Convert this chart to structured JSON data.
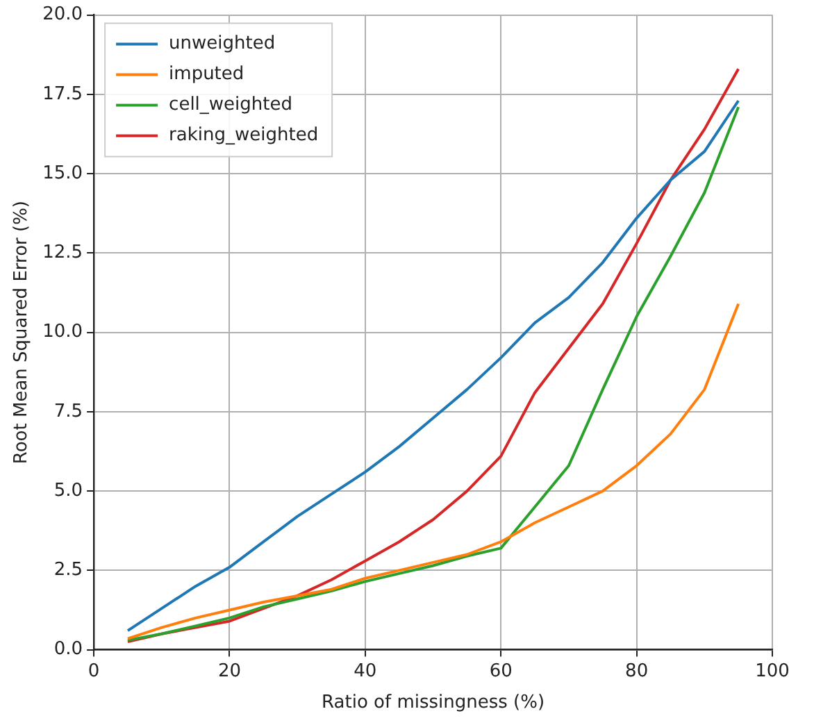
{
  "chart_data": {
    "type": "line",
    "xlabel": "Ratio of missingness (%)",
    "ylabel": "Root Mean Squared Error (%)",
    "x": [
      5,
      10,
      15,
      20,
      25,
      30,
      35,
      40,
      45,
      50,
      55,
      60,
      65,
      70,
      75,
      80,
      85,
      90,
      95
    ],
    "series": [
      {
        "name": "unweighted",
        "color": "#1f77b4",
        "values": [
          0.6,
          1.3,
          2.0,
          2.6,
          3.4,
          4.2,
          4.9,
          5.6,
          6.4,
          7.3,
          8.2,
          9.2,
          10.3,
          11.1,
          12.2,
          13.6,
          14.8,
          15.7,
          17.3
        ]
      },
      {
        "name": "imputed",
        "color": "#ff7f0e",
        "values": [
          0.35,
          0.7,
          1.0,
          1.25,
          1.5,
          1.7,
          1.9,
          2.25,
          2.5,
          2.75,
          3.0,
          3.4,
          4.0,
          4.5,
          5.0,
          5.8,
          6.8,
          8.2,
          10.9
        ]
      },
      {
        "name": "cell_weighted",
        "color": "#2ca02c",
        "values": [
          0.3,
          0.5,
          0.75,
          1.0,
          1.35,
          1.6,
          1.85,
          2.15,
          2.4,
          2.65,
          2.95,
          3.2,
          4.5,
          5.8,
          8.2,
          10.5,
          12.4,
          14.4,
          17.1
        ]
      },
      {
        "name": "raking_weighted",
        "color": "#d62728",
        "values": [
          0.25,
          0.5,
          0.7,
          0.9,
          1.3,
          1.7,
          2.2,
          2.8,
          3.4,
          4.1,
          5.0,
          6.1,
          8.1,
          9.5,
          10.9,
          12.8,
          14.8,
          16.4,
          18.3
        ]
      }
    ],
    "xlim": [
      0,
      100
    ],
    "xticks": [
      0,
      20,
      40,
      60,
      80,
      100
    ],
    "ylim": [
      0,
      20
    ],
    "yticks": [
      {
        "value": 0,
        "label": "0.0"
      },
      {
        "value": 2.5,
        "label": "2.5"
      },
      {
        "value": 5,
        "label": "5.0"
      },
      {
        "value": 7.5,
        "label": "7.5"
      },
      {
        "value": 10,
        "label": "10.0"
      },
      {
        "value": 12.5,
        "label": "12.5"
      },
      {
        "value": 15,
        "label": "15.0"
      },
      {
        "value": 17.5,
        "label": "17.5"
      },
      {
        "value": 20,
        "label": "20.0"
      }
    ],
    "grid": true,
    "legend": "top left",
    "marker": "none",
    "line_style": "solid"
  }
}
